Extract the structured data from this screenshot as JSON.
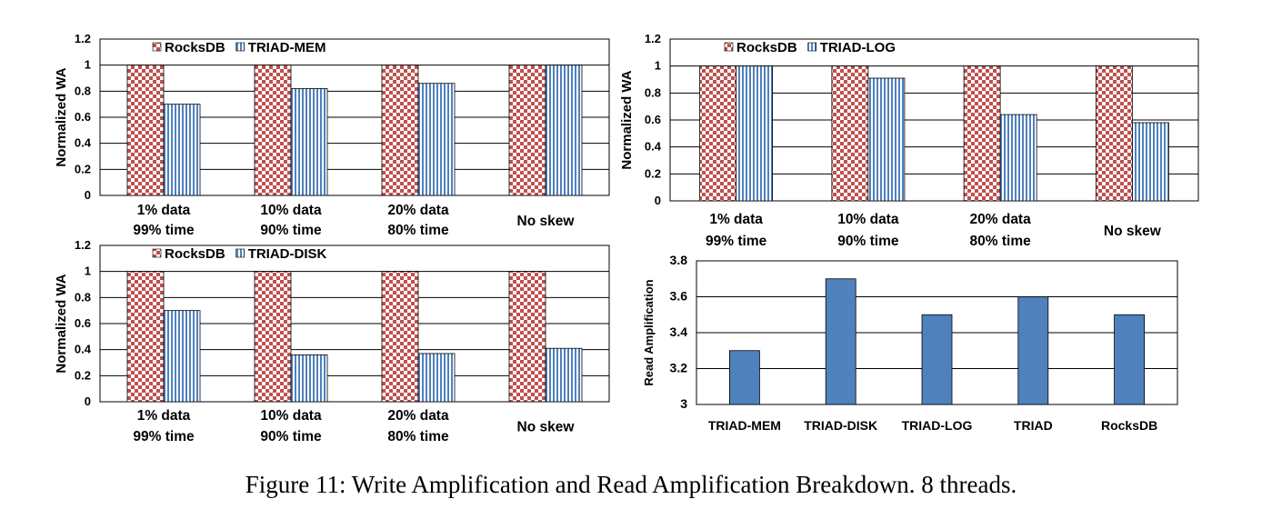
{
  "caption": "Figure 11: Write Amplification and Read Amplification Breakdown. 8 threads.",
  "colors": {
    "rocksdb_check_a": "#c0504d",
    "rocksdb_check_b": "#ffffff",
    "triad_stripe": "#4f81bd",
    "bar_solid": "#4f81bd",
    "grid": "#000000"
  },
  "chart_data": [
    {
      "type": "bar",
      "ylabel": "Normalized WA",
      "ylim": [
        0,
        1.2
      ],
      "yticks": [
        "0",
        "0.2",
        "0.4",
        "0.6",
        "0.8",
        "1",
        "1.2"
      ],
      "categories": [
        [
          "1% data",
          "99% time"
        ],
        [
          "10% data",
          "90% time"
        ],
        [
          "20% data",
          "80% time"
        ],
        [
          "No skew"
        ]
      ],
      "legend_position": "top-left",
      "series": [
        {
          "name": "RocksDB",
          "pattern": "checker",
          "values": [
            1,
            1,
            1,
            1
          ]
        },
        {
          "name": "TRIAD-MEM",
          "pattern": "stripes",
          "values": [
            0.7,
            0.82,
            0.86,
            1
          ]
        }
      ]
    },
    {
      "type": "bar",
      "ylabel": "Normalized WA",
      "ylim": [
        0,
        1.2
      ],
      "yticks": [
        "0",
        "0.2",
        "0.4",
        "0.6",
        "0.8",
        "1",
        "1.2"
      ],
      "categories": [
        [
          "1% data",
          "99% time"
        ],
        [
          "10% data",
          "90% time"
        ],
        [
          "20% data",
          "80% time"
        ],
        [
          "No skew"
        ]
      ],
      "legend_position": "top-left",
      "series": [
        {
          "name": "RocksDB",
          "pattern": "checker",
          "values": [
            1,
            1,
            1,
            1
          ]
        },
        {
          "name": "TRIAD-LOG",
          "pattern": "stripes",
          "values": [
            1,
            0.91,
            0.64,
            0.58
          ]
        }
      ]
    },
    {
      "type": "bar",
      "ylabel": "Normalized WA",
      "ylim": [
        0,
        1.2
      ],
      "yticks": [
        "0",
        "0.2",
        "0.4",
        "0.6",
        "0.8",
        "1",
        "1.2"
      ],
      "categories": [
        [
          "1% data",
          "99% time"
        ],
        [
          "10% data",
          "90% time"
        ],
        [
          "20% data",
          "80% time"
        ],
        [
          "No skew"
        ]
      ],
      "legend_position": "top-left",
      "series": [
        {
          "name": "RocksDB",
          "pattern": "checker",
          "values": [
            1,
            1,
            1,
            1
          ]
        },
        {
          "name": "TRIAD-DISK",
          "pattern": "stripes",
          "values": [
            0.7,
            0.36,
            0.37,
            0.41
          ]
        }
      ]
    },
    {
      "type": "bar",
      "ylabel": "Read Amplification",
      "ylim": [
        3,
        3.8
      ],
      "yticks": [
        "3",
        "3.2",
        "3.4",
        "3.6",
        "3.8"
      ],
      "categories": [
        [
          "TRIAD-MEM"
        ],
        [
          "TRIAD-DISK"
        ],
        [
          "TRIAD-LOG"
        ],
        [
          "TRIAD"
        ],
        [
          "RocksDB"
        ]
      ],
      "series": [
        {
          "pattern": "solid",
          "values": [
            3.3,
            3.7,
            3.5,
            3.6,
            3.5
          ]
        }
      ]
    }
  ]
}
